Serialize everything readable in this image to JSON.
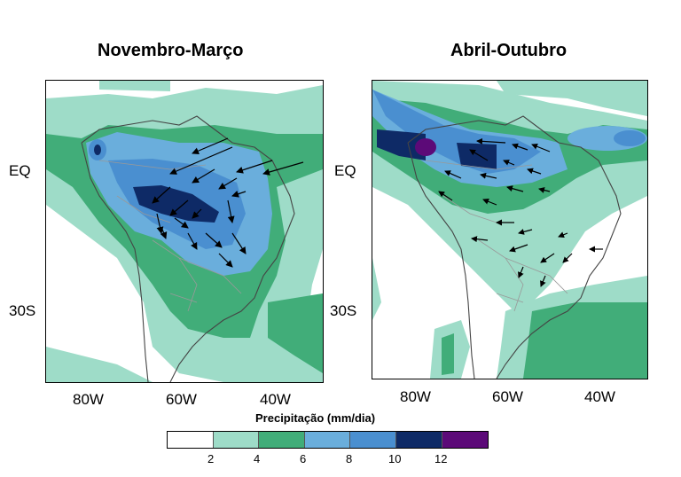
{
  "panels": [
    {
      "title": "Novembro-Março"
    },
    {
      "title": "Abril-Outubro"
    }
  ],
  "axes": {
    "y_labels": [
      "EQ",
      "30S"
    ],
    "x_labels": [
      "80W",
      "60W",
      "40W"
    ]
  },
  "colorbar": {
    "title": "Precipitação (mm/dia)",
    "labels": [
      "2",
      "4",
      "6",
      "8",
      "10",
      "12"
    ],
    "colors": [
      "#ffffff",
      "#9edcc8",
      "#41ad79",
      "#6aaedc",
      "#4a8fd0",
      "#0e2a66",
      "#5c0a78"
    ]
  }
}
